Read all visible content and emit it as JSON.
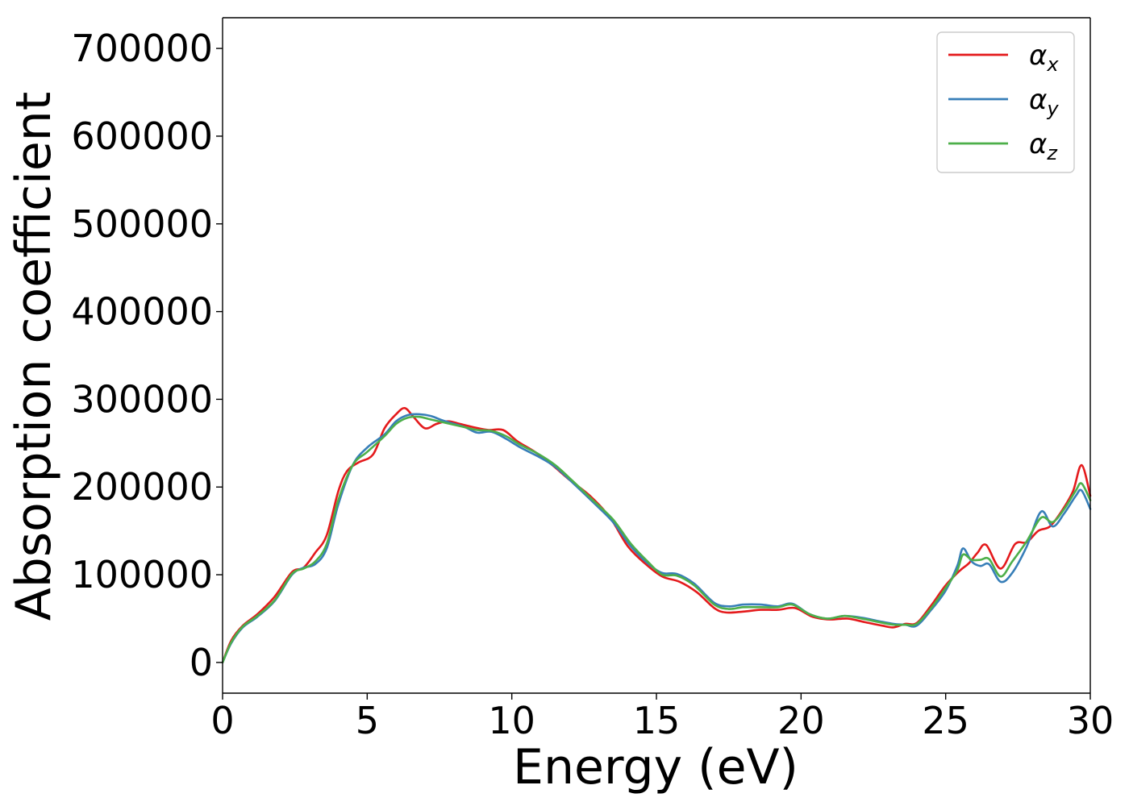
{
  "chart_data": {
    "type": "line",
    "xlabel": "Energy (eV)",
    "ylabel": "Absorption coefficient",
    "xlim": [
      0,
      30
    ],
    "ylim": [
      -35000,
      735000
    ],
    "xticks": [
      0,
      5,
      10,
      15,
      20,
      25,
      30
    ],
    "yticks": [
      0,
      100000,
      200000,
      300000,
      400000,
      500000,
      600000,
      700000
    ],
    "grid": false,
    "legend_position": "top-right",
    "series": [
      {
        "name": "αx",
        "legend_symbol": "α",
        "legend_subscript": "x",
        "color": "#e41a1c",
        "x": [
          0,
          0.3,
          0.7,
          1.2,
          1.8,
          2.4,
          2.8,
          3.2,
          3.6,
          4.0,
          4.3,
          4.7,
          5.2,
          5.6,
          6.0,
          6.3,
          6.6,
          7.0,
          7.4,
          7.8,
          8.2,
          8.7,
          9.2,
          9.7,
          10.2,
          10.8,
          11.4,
          12.0,
          12.7,
          13.4,
          14.0,
          14.6,
          15.2,
          15.8,
          16.4,
          17.0,
          17.4,
          18.0,
          18.6,
          19.2,
          19.8,
          20.4,
          21.0,
          21.6,
          22.2,
          22.8,
          23.2,
          23.6,
          24.0,
          24.5,
          25.0,
          25.5,
          25.8,
          26.1,
          26.4,
          26.9,
          27.4,
          27.8,
          28.2,
          28.6,
          29.0,
          29.4,
          29.7,
          30.0
        ],
        "y": [
          0,
          25000,
          42000,
          55000,
          75000,
          103000,
          108000,
          125000,
          145000,
          195000,
          218000,
          228000,
          237000,
          267000,
          283000,
          290000,
          280000,
          267000,
          272000,
          275000,
          272000,
          268000,
          265000,
          265000,
          252000,
          240000,
          225000,
          208000,
          190000,
          165000,
          133000,
          113000,
          98000,
          92000,
          80000,
          62000,
          57000,
          58000,
          60000,
          60000,
          62000,
          52000,
          49000,
          50000,
          46000,
          42000,
          40000,
          44000,
          45000,
          65000,
          88000,
          105000,
          113000,
          125000,
          134000,
          107000,
          135000,
          137000,
          150000,
          155000,
          172000,
          195000,
          225000,
          190000
        ]
      },
      {
        "name": "αy",
        "legend_symbol": "α",
        "legend_subscript": "y",
        "color": "#377eb8",
        "x": [
          0,
          0.3,
          0.7,
          1.2,
          1.8,
          2.4,
          2.8,
          3.2,
          3.6,
          4.0,
          4.5,
          5.0,
          5.6,
          6.0,
          6.4,
          6.8,
          7.2,
          7.6,
          8.0,
          8.4,
          8.8,
          9.3,
          9.8,
          10.3,
          10.9,
          11.5,
          12.1,
          12.8,
          13.5,
          14.1,
          14.7,
          15.2,
          15.7,
          16.3,
          17.0,
          17.5,
          18.0,
          18.6,
          19.2,
          19.7,
          20.3,
          20.9,
          21.5,
          22.1,
          22.7,
          23.2,
          23.6,
          24.0,
          24.5,
          25.0,
          25.4,
          25.6,
          25.9,
          26.2,
          26.5,
          26.9,
          27.3,
          27.8,
          28.3,
          28.7,
          29.1,
          29.5,
          29.7,
          30.0
        ],
        "y": [
          0,
          22000,
          40000,
          52000,
          70000,
          100000,
          108000,
          112000,
          130000,
          180000,
          225000,
          245000,
          260000,
          275000,
          282000,
          283000,
          281000,
          276000,
          272000,
          268000,
          262000,
          263000,
          255000,
          245000,
          235000,
          223000,
          205000,
          183000,
          160000,
          133000,
          113000,
          102000,
          101000,
          90000,
          68000,
          64000,
          66000,
          66000,
          64000,
          67000,
          55000,
          50000,
          53000,
          51000,
          47000,
          44000,
          43000,
          42000,
          60000,
          82000,
          110000,
          130000,
          115000,
          110000,
          112000,
          92000,
          102000,
          132000,
          172000,
          155000,
          170000,
          190000,
          196000,
          175000
        ]
      },
      {
        "name": "αz",
        "legend_symbol": "α",
        "legend_subscript": "z",
        "color": "#4daf4a",
        "x": [
          0,
          0.3,
          0.7,
          1.2,
          1.8,
          2.4,
          2.8,
          3.2,
          3.6,
          4.0,
          4.5,
          5.0,
          5.6,
          6.0,
          6.4,
          6.8,
          7.2,
          7.6,
          8.0,
          8.4,
          8.8,
          9.3,
          9.8,
          10.3,
          10.9,
          11.5,
          12.1,
          12.8,
          13.5,
          14.1,
          14.7,
          15.2,
          15.7,
          16.3,
          17.0,
          17.5,
          18.0,
          18.6,
          19.2,
          19.7,
          20.3,
          20.9,
          21.5,
          22.1,
          22.7,
          23.2,
          23.6,
          24.0,
          24.5,
          25.0,
          25.4,
          25.6,
          25.9,
          26.2,
          26.5,
          26.9,
          27.3,
          27.8,
          28.3,
          28.7,
          29.1,
          29.5,
          29.7,
          30.0
        ],
        "y": [
          0,
          23000,
          41000,
          53000,
          71000,
          101000,
          107000,
          115000,
          135000,
          185000,
          225000,
          240000,
          258000,
          272000,
          279000,
          280000,
          277000,
          274000,
          271000,
          268000,
          265000,
          264000,
          258000,
          248000,
          238000,
          225000,
          207000,
          185000,
          163000,
          136000,
          115000,
          100000,
          99000,
          88000,
          66000,
          61000,
          63000,
          63000,
          63000,
          66000,
          55000,
          50000,
          53000,
          50000,
          46000,
          43000,
          43000,
          44000,
          62000,
          85000,
          105000,
          123000,
          117000,
          117000,
          118000,
          98000,
          115000,
          138000,
          165000,
          160000,
          175000,
          196000,
          204000,
          185000
        ]
      }
    ]
  }
}
